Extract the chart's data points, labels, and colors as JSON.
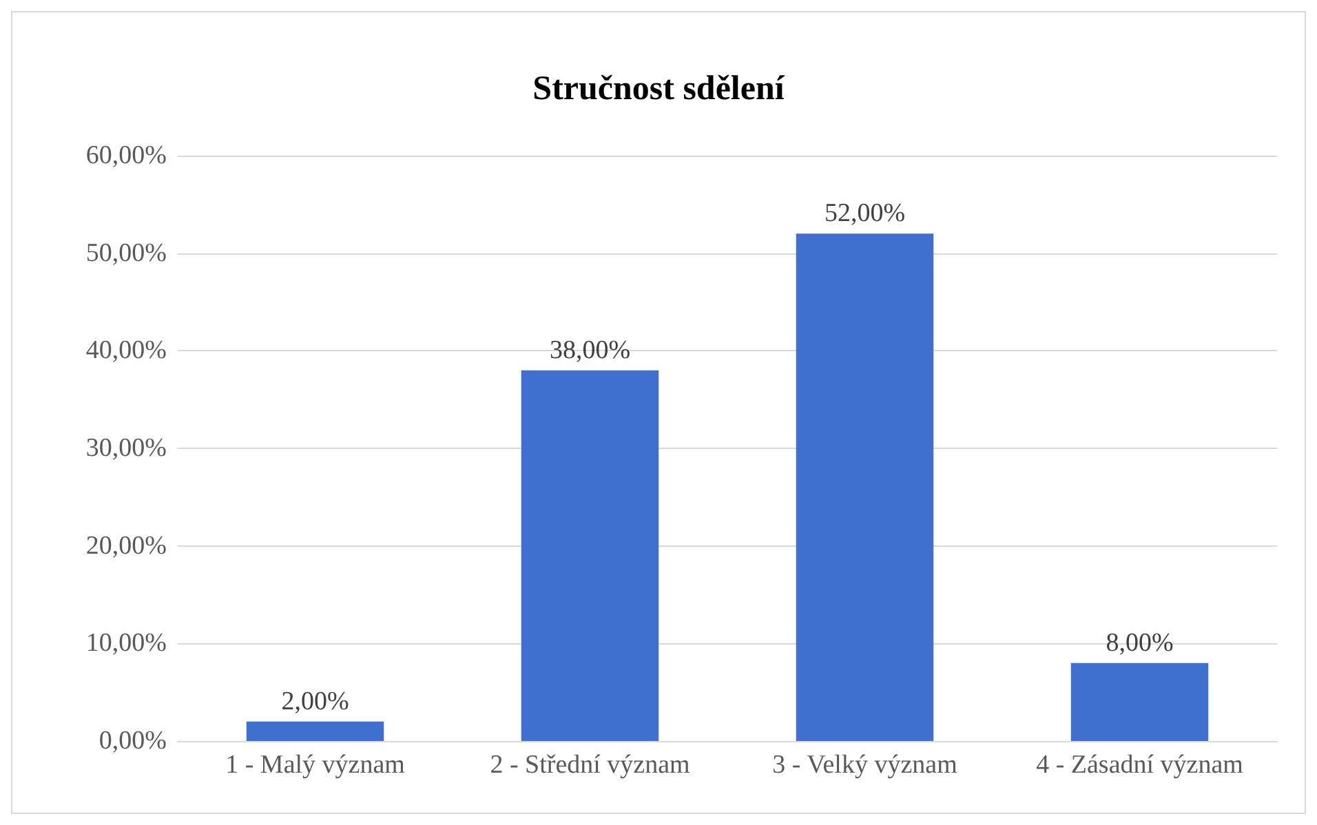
{
  "chart_data": {
    "type": "bar",
    "title": "Stručnost sdělení",
    "categories": [
      "1 - Malý význam",
      "2 - Střední význam",
      "3 - Velký význam",
      "4 - Zásadní význam"
    ],
    "values": [
      2,
      38,
      52,
      8
    ],
    "value_labels": [
      "2,00%",
      "38,00%",
      "52,00%",
      "8,00%"
    ],
    "color": "#3f6fcf",
    "ylim": [
      0,
      60
    ],
    "yticks": [
      {
        "value": 0,
        "label": "0,00%"
      },
      {
        "value": 10,
        "label": "10,00%"
      },
      {
        "value": 20,
        "label": "20,00%"
      },
      {
        "value": 30,
        "label": "30,00%"
      },
      {
        "value": 40,
        "label": "40,00%"
      },
      {
        "value": 50,
        "label": "50,00%"
      },
      {
        "value": 60,
        "label": "60,00%"
      }
    ],
    "grid": "y"
  }
}
